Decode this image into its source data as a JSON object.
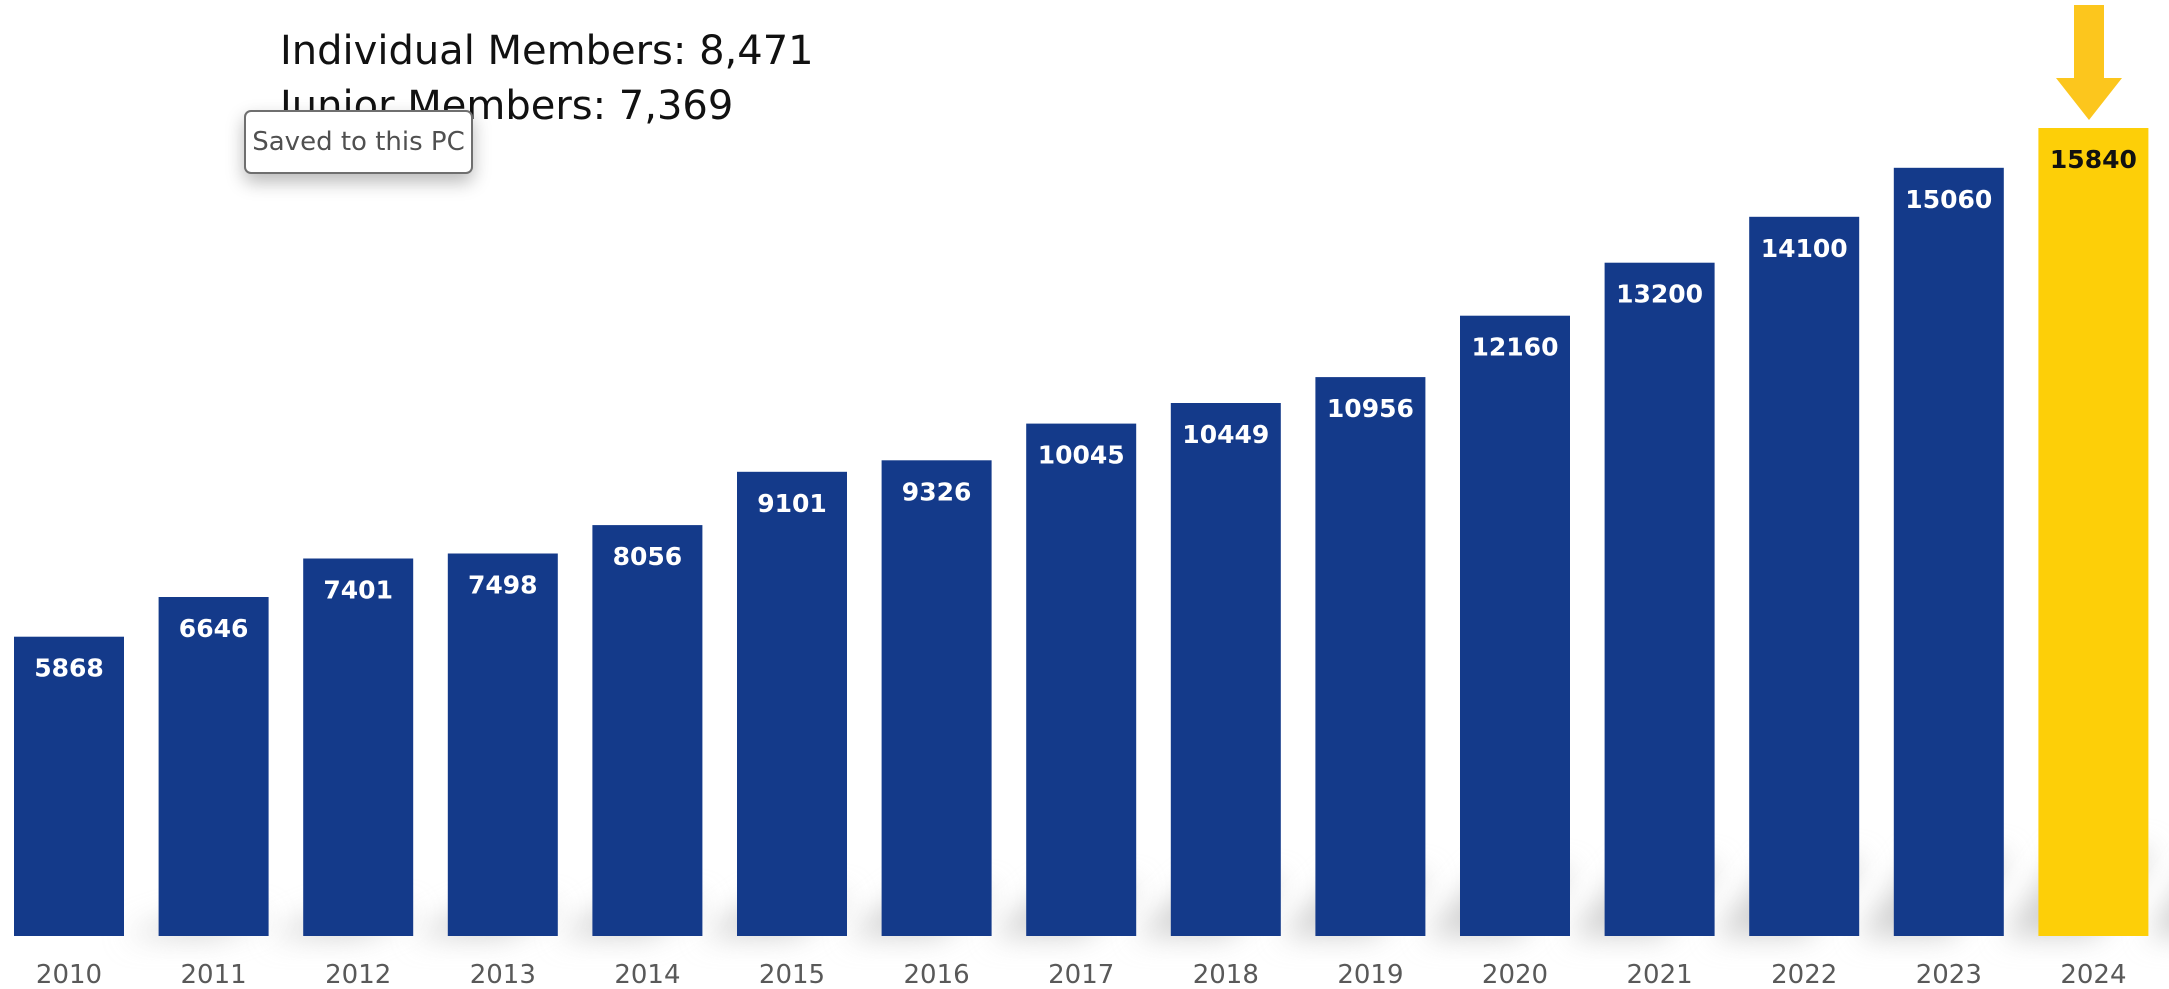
{
  "stats": {
    "individual": "Individual Members: 8,471",
    "junior": "Junior Members: 7,369"
  },
  "toast": {
    "message": "Saved to this PC"
  },
  "icons": {
    "highlight_marker": "arrow-down-icon"
  },
  "colors": {
    "bar": "#143a8a",
    "highlight": "#fdcf08",
    "arrow": "#fcc61d",
    "shadow": "#cfcfcf"
  },
  "chart_data": {
    "type": "bar",
    "categories": [
      "2010",
      "2011",
      "2012",
      "2013",
      "2014",
      "2015",
      "2016",
      "2017",
      "2018",
      "2019",
      "2020",
      "2021",
      "2022",
      "2023",
      "2024"
    ],
    "values": [
      5868,
      6646,
      7401,
      7498,
      8056,
      9101,
      9326,
      10045,
      10449,
      10956,
      12160,
      13200,
      14100,
      15060,
      15840
    ],
    "data_labels": [
      "5868",
      "6646",
      "7401",
      "7498",
      "8056",
      "9101",
      "9326",
      "10045",
      "10449",
      "10956",
      "12160",
      "13200",
      "14100",
      "15060",
      "15840"
    ],
    "highlight_category": "2024",
    "ylim": [
      0,
      15840
    ],
    "grid": false,
    "legend": "none"
  }
}
